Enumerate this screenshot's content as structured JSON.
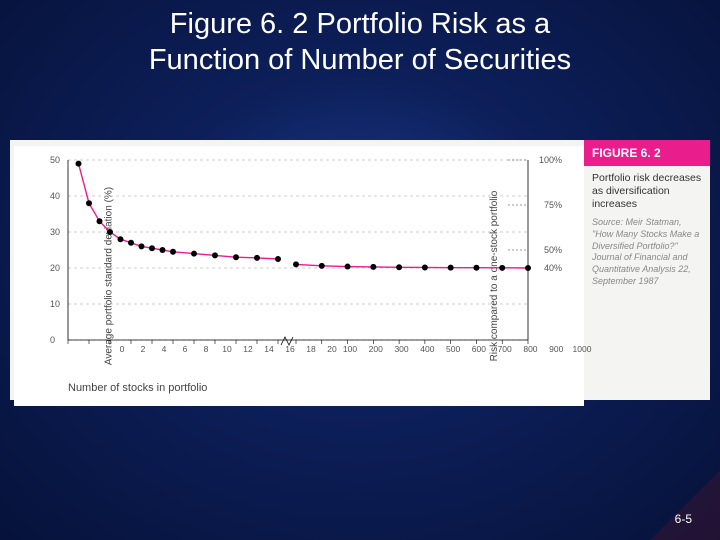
{
  "slide": {
    "title": "Figure 6. 2 Portfolio Risk as a\nFunction of Number of Securities",
    "page_number": "6-5",
    "background_gradient": [
      "#1a3a8a",
      "#0d1f5a",
      "#06123a"
    ]
  },
  "figure_box": {
    "background": "#f4f4f2",
    "header_bg": "#e91e8c",
    "header_text": "FIGURE 6. 2",
    "caption": "Portfolio risk decreases as diversification increases",
    "source": "Source: Meir Statman, \"How Many Stocks Make a Diversified Portfolio?\" Journal of Financial and Quantitative Analysis 22, September 1987"
  },
  "chart": {
    "type": "line",
    "title_fontsize": 29,
    "ylabel": "Average portfolio standard deviation (%)",
    "y2label": "Risk compared to a one-stock portfolio",
    "xlabel": "Number of stocks in portfolio",
    "label_fontsize": 10,
    "tick_fontsize": 9,
    "line_color": "#e91e8c",
    "marker_color": "#000000",
    "marker_size": 3,
    "line_width": 1.4,
    "grid_color": "#999999",
    "grid_dash": true,
    "background_color": "#ffffff",
    "ylim": [
      0,
      50
    ],
    "yticks": [
      0,
      10,
      20,
      30,
      40,
      50
    ],
    "y2_ticks": [
      {
        "v": 100,
        "label": "100%"
      },
      {
        "v": 75,
        "label": "75%"
      },
      {
        "v": 50,
        "label": "50%"
      },
      {
        "v": 40,
        "label": "40%"
      }
    ],
    "x_segments": {
      "left": {
        "xlim": [
          0,
          20
        ],
        "ticks": [
          0,
          2,
          4,
          6,
          8,
          10,
          12,
          14,
          16,
          18,
          20
        ]
      },
      "right": {
        "xlim": [
          100,
          1000
        ],
        "ticks": [
          100,
          200,
          300,
          400,
          500,
          600,
          700,
          800,
          900,
          1000
        ]
      }
    },
    "axis_break_x": 20,
    "series": [
      {
        "segment": "left",
        "x": [
          1,
          2,
          3,
          4,
          5,
          6,
          7,
          8,
          9,
          10,
          12,
          14,
          16,
          18,
          20
        ],
        "y": [
          49,
          38,
          33,
          30,
          28,
          27,
          26,
          25.5,
          25,
          24.5,
          24,
          23.5,
          23,
          22.8,
          22.5
        ]
      },
      {
        "segment": "right",
        "x": [
          100,
          200,
          300,
          400,
          500,
          600,
          700,
          800,
          900,
          1000
        ],
        "y": [
          21,
          20.6,
          20.4,
          20.3,
          20.2,
          20.15,
          20.1,
          20.08,
          20.05,
          20
        ]
      }
    ]
  }
}
